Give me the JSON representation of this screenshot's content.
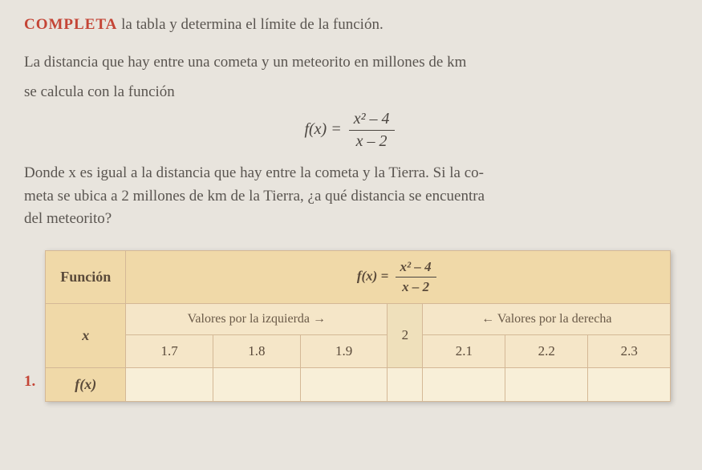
{
  "instruction": {
    "highlight": "COMPLETA",
    "rest": " la tabla y determina el límite de la función."
  },
  "problem": {
    "line1": "La distancia que hay entre una cometa y un meteorito en millones de km",
    "line2": "se calcula con la función"
  },
  "formula": {
    "fx": "f(x) =",
    "num": "x² – 4",
    "den": "x – 2"
  },
  "question": {
    "line1": "Donde x es igual a la distancia que hay entre la cometa y la Tierra. Si la co-",
    "line2": "meta se ubica a 2 millones de km de la Tierra, ¿a qué distancia se encuentra",
    "line3": "del meteorito?"
  },
  "qnum": "1.",
  "table": {
    "func_label": "Función",
    "x_label": "x",
    "fx_label": "f(x)",
    "left_header": "Valores por la izquierda →",
    "right_header": "← Valores por la derecha",
    "center_val": "2",
    "left_vals": [
      "1.7",
      "1.8",
      "1.9"
    ],
    "right_vals": [
      "2.1",
      "2.2",
      "2.3"
    ],
    "fx_vals_left": [
      "",
      "",
      ""
    ],
    "fx_center": "",
    "fx_vals_right": [
      "",
      "",
      ""
    ]
  },
  "colors": {
    "page_bg": "#e8e4dd",
    "accent": "#c44536",
    "table_bg": "#f5e6c8",
    "header_bg": "#f0d9a8",
    "border": "#d4b896",
    "text": "#5a5550"
  }
}
